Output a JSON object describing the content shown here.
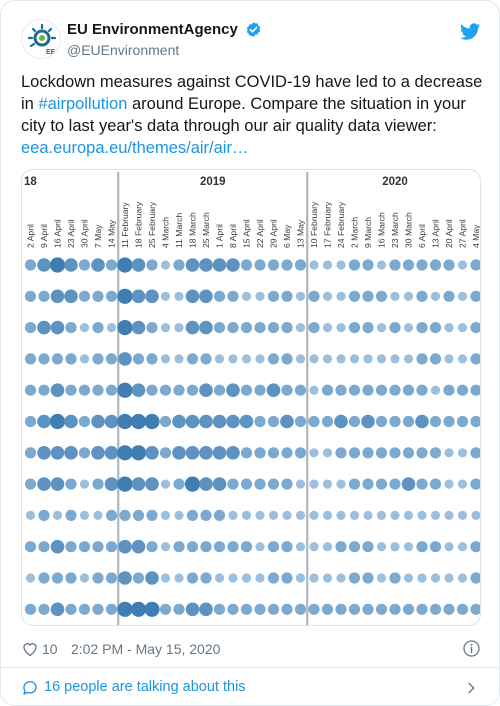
{
  "account": {
    "display_name": "EU EnvironmentAgency",
    "handle": "@EUEnvironment",
    "avatar_icon": "eea-logo-icon",
    "avatar_text": "EEA"
  },
  "tweet": {
    "text_part1": "Lockdown measures against COVID-19 have led to a decrease in ",
    "hashtag": "#airpollution",
    "text_part2": " around Europe. Compare the situation in your city to last year's data through our air quality data viewer: ",
    "link": "eea.europa.eu/themes/air/air…"
  },
  "media": {
    "years": [
      "18",
      "2019",
      "2020"
    ],
    "columns": [
      {
        "label": "2 April",
        "segment": 0
      },
      {
        "label": "9 April",
        "segment": 0
      },
      {
        "label": "16 April",
        "segment": 0
      },
      {
        "label": "23 April",
        "segment": 0
      },
      {
        "label": "30 April",
        "segment": 0
      },
      {
        "label": "7 May",
        "segment": 0
      },
      {
        "label": "14 May",
        "segment": 0
      },
      {
        "label": "11 February",
        "segment": 1
      },
      {
        "label": "18 February",
        "segment": 1
      },
      {
        "label": "25 February",
        "segment": 1
      },
      {
        "label": "4 March",
        "segment": 1
      },
      {
        "label": "11 March",
        "segment": 1
      },
      {
        "label": "18 March",
        "segment": 1
      },
      {
        "label": "25 March",
        "segment": 1
      },
      {
        "label": "1 April",
        "segment": 1
      },
      {
        "label": "8 April",
        "segment": 1
      },
      {
        "label": "15 April",
        "segment": 1
      },
      {
        "label": "22 April",
        "segment": 1
      },
      {
        "label": "29 April",
        "segment": 1
      },
      {
        "label": "6 May",
        "segment": 1
      },
      {
        "label": "13 May",
        "segment": 1
      },
      {
        "label": "10 February",
        "segment": 2
      },
      {
        "label": "17 February",
        "segment": 2
      },
      {
        "label": "24 February",
        "segment": 2
      },
      {
        "label": "2 March",
        "segment": 2
      },
      {
        "label": "9 March",
        "segment": 2
      },
      {
        "label": "16 March",
        "segment": 2
      },
      {
        "label": "23 March",
        "segment": 2
      },
      {
        "label": "30 March",
        "segment": 2
      },
      {
        "label": "6 April",
        "segment": 2
      },
      {
        "label": "13 April",
        "segment": 2
      },
      {
        "label": "20 April",
        "segment": 2
      },
      {
        "label": "27 April",
        "segment": 2
      },
      {
        "label": "4 May",
        "segment": 2
      }
    ],
    "bubble_levels_scale": "1 = lowest, 5 = highest",
    "rows": [
      [
        3,
        4,
        5,
        4,
        3,
        4,
        3,
        5,
        4,
        3,
        2,
        3,
        4,
        4,
        4,
        4,
        3,
        3,
        3,
        3,
        3,
        2,
        2,
        2,
        3,
        3,
        2,
        3,
        3,
        3,
        3,
        3,
        2,
        3
      ],
      [
        3,
        3,
        4,
        4,
        3,
        3,
        3,
        5,
        4,
        4,
        2,
        2,
        4,
        4,
        3,
        3,
        2,
        2,
        3,
        3,
        2,
        3,
        2,
        2,
        3,
        3,
        3,
        2,
        2,
        3,
        2,
        3,
        2,
        3
      ],
      [
        3,
        4,
        4,
        3,
        2,
        3,
        2,
        5,
        4,
        3,
        2,
        2,
        4,
        4,
        3,
        3,
        3,
        3,
        3,
        3,
        2,
        3,
        2,
        2,
        3,
        3,
        2,
        3,
        2,
        3,
        3,
        2,
        2,
        3
      ],
      [
        3,
        3,
        3,
        3,
        2,
        3,
        3,
        4,
        3,
        3,
        2,
        2,
        3,
        3,
        2,
        2,
        2,
        2,
        3,
        3,
        2,
        2,
        2,
        2,
        2,
        2,
        2,
        2,
        2,
        3,
        3,
        2,
        2,
        3
      ],
      [
        3,
        3,
        4,
        3,
        3,
        3,
        3,
        5,
        4,
        3,
        3,
        3,
        3,
        4,
        3,
        4,
        3,
        3,
        4,
        3,
        3,
        2,
        3,
        3,
        3,
        3,
        3,
        3,
        3,
        3,
        2,
        3,
        3,
        3
      ],
      [
        3,
        4,
        5,
        4,
        3,
        4,
        4,
        5,
        5,
        5,
        3,
        4,
        4,
        4,
        4,
        4,
        4,
        3,
        3,
        4,
        3,
        3,
        3,
        4,
        3,
        4,
        3,
        3,
        3,
        4,
        3,
        3,
        3,
        3
      ],
      [
        3,
        4,
        4,
        4,
        3,
        4,
        4,
        5,
        5,
        4,
        3,
        4,
        4,
        4,
        4,
        4,
        3,
        3,
        3,
        3,
        3,
        2,
        2,
        3,
        3,
        3,
        3,
        3,
        3,
        3,
        3,
        2,
        2,
        3
      ],
      [
        3,
        4,
        4,
        3,
        2,
        3,
        4,
        5,
        4,
        4,
        2,
        3,
        5,
        4,
        4,
        3,
        3,
        3,
        3,
        3,
        2,
        2,
        2,
        2,
        3,
        3,
        3,
        3,
        4,
        3,
        3,
        2,
        2,
        3
      ],
      [
        2,
        3,
        2,
        3,
        2,
        2,
        3,
        3,
        3,
        3,
        2,
        2,
        3,
        3,
        3,
        2,
        2,
        2,
        2,
        2,
        2,
        2,
        2,
        2,
        2,
        2,
        2,
        2,
        2,
        2,
        2,
        2,
        2,
        2
      ],
      [
        3,
        3,
        4,
        3,
        3,
        3,
        3,
        4,
        4,
        3,
        2,
        3,
        3,
        3,
        3,
        3,
        3,
        2,
        3,
        3,
        2,
        2,
        2,
        3,
        3,
        3,
        2,
        2,
        2,
        3,
        3,
        2,
        2,
        3
      ],
      [
        2,
        3,
        3,
        3,
        2,
        3,
        3,
        4,
        3,
        4,
        2,
        2,
        3,
        3,
        2,
        2,
        2,
        2,
        3,
        3,
        2,
        2,
        2,
        2,
        3,
        3,
        2,
        3,
        2,
        2,
        2,
        2,
        2,
        3
      ],
      [
        3,
        3,
        4,
        3,
        3,
        3,
        3,
        5,
        5,
        5,
        3,
        3,
        4,
        4,
        3,
        3,
        3,
        3,
        3,
        3,
        3,
        3,
        3,
        3,
        3,
        3,
        3,
        3,
        3,
        3,
        3,
        3,
        3,
        3
      ]
    ]
  },
  "footer": {
    "like_count": "10",
    "timestamp": "2:02 PM - May 15, 2020",
    "talking": "16 people are talking about this"
  },
  "colors": {
    "link": "#1b95e0",
    "bubble_light": "#b9d5ea",
    "bubble_dark": "#3f7db3",
    "separator": "#b0b6bb"
  },
  "icons": {
    "verified": "verified-badge-icon",
    "brand": "twitter-bird-icon",
    "like": "heart-icon",
    "info": "info-icon",
    "reply": "speech-bubble-icon",
    "more": "chevron-right-icon"
  }
}
